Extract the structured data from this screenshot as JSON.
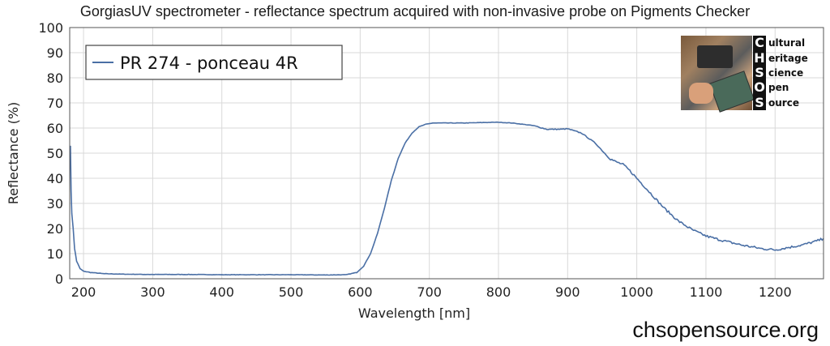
{
  "title": "GorgiasUV spectrometer - reflectance spectrum acquired with non-invasive probe on Pigments Checker",
  "footer": "chsopensource.org",
  "logo": {
    "letters": [
      "C",
      "H",
      "S",
      "O",
      "S"
    ],
    "words": [
      "ultural",
      "eritage",
      "cience",
      "pen",
      "ource"
    ]
  },
  "colors": {
    "series": "#4a6fa5",
    "grid": "#d9d9d9",
    "axis": "#555555"
  },
  "chart_data": {
    "type": "line",
    "title": "GorgiasUV spectrometer - reflectance spectrum acquired with non-invasive probe on Pigments Checker",
    "xlabel": "Wavelength [nm]",
    "ylabel": "Reflectance (%)",
    "xlim": [
      180,
      1270
    ],
    "ylim": [
      0,
      100
    ],
    "xticks": [
      200,
      300,
      400,
      500,
      600,
      700,
      800,
      900,
      1000,
      1100,
      1200
    ],
    "yticks": [
      0,
      10,
      20,
      30,
      40,
      50,
      60,
      70,
      80,
      90,
      100
    ],
    "grid": true,
    "legend_position": "top-left",
    "series": [
      {
        "name": "PR 274 - ponceau 4R",
        "x": [
          181,
          182,
          183,
          185,
          187,
          190,
          195,
          200,
          210,
          230,
          260,
          300,
          350,
          400,
          450,
          500,
          550,
          580,
          595,
          605,
          615,
          625,
          635,
          645,
          655,
          665,
          675,
          685,
          695,
          705,
          720,
          750,
          780,
          800,
          820,
          850,
          870,
          890,
          900,
          920,
          940,
          950,
          960,
          970,
          980,
          990,
          1000,
          1020,
          1040,
          1060,
          1080,
          1100,
          1120,
          1150,
          1180,
          1200,
          1220,
          1240,
          1260,
          1270
        ],
        "y": [
          53,
          35,
          26,
          20,
          12,
          7,
          4,
          3,
          2.5,
          2,
          1.8,
          1.7,
          1.7,
          1.6,
          1.6,
          1.6,
          1.5,
          1.6,
          2.5,
          5,
          10,
          18,
          28,
          39,
          48,
          54,
          58,
          60.5,
          61.5,
          62,
          62,
          62,
          62.2,
          62.3,
          62,
          61,
          59.5,
          59.5,
          59.7,
          58,
          54,
          51,
          48,
          46.5,
          45.5,
          43,
          40,
          34,
          28,
          23,
          19.5,
          17,
          15.5,
          13.5,
          12,
          11.5,
          12.5,
          13.5,
          15,
          16
        ]
      }
    ]
  }
}
